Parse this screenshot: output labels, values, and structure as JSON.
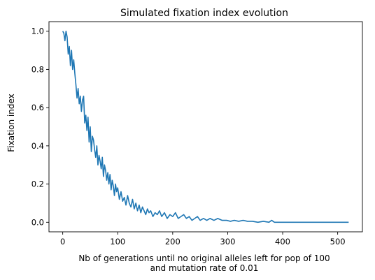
{
  "chart_data": {
    "type": "line",
    "title": "Simulated fixation index evolution",
    "xlabel_lines": [
      "Nb of generations until no original alleles left for pop of 100",
      "and mutation rate of 0.01"
    ],
    "ylabel": "Fixation index",
    "xlim": [
      -25,
      545
    ],
    "ylim": [
      -0.05,
      1.05
    ],
    "xticks": [
      0,
      100,
      200,
      300,
      400,
      500
    ],
    "yticks": [
      0.0,
      0.2,
      0.4,
      0.6,
      0.8,
      1.0
    ],
    "xtick_labels": [
      "0",
      "100",
      "200",
      "300",
      "400",
      "500"
    ],
    "ytick_labels": [
      "0.0",
      "0.2",
      "0.4",
      "0.6",
      "0.8",
      "1.0"
    ],
    "grid": false,
    "legend": "none",
    "series": [
      {
        "color": "#1f77b4",
        "x": [
          0,
          2,
          4,
          6,
          8,
          10,
          12,
          14,
          16,
          18,
          20,
          22,
          24,
          26,
          28,
          30,
          32,
          34,
          36,
          38,
          40,
          42,
          44,
          46,
          48,
          50,
          52,
          54,
          56,
          58,
          60,
          62,
          64,
          66,
          68,
          70,
          72,
          74,
          76,
          78,
          80,
          82,
          84,
          86,
          88,
          90,
          92,
          94,
          96,
          98,
          100,
          103,
          106,
          109,
          112,
          115,
          118,
          121,
          124,
          127,
          130,
          133,
          136,
          139,
          142,
          145,
          148,
          151,
          154,
          157,
          160,
          164,
          168,
          172,
          176,
          180,
          185,
          190,
          195,
          200,
          205,
          210,
          215,
          220,
          225,
          230,
          235,
          240,
          245,
          250,
          256,
          262,
          268,
          275,
          282,
          290,
          298,
          305,
          312,
          320,
          328,
          336,
          345,
          355,
          365,
          375,
          380,
          385,
          400,
          450,
          520
        ],
        "y": [
          1.0,
          0.99,
          0.95,
          1.0,
          0.97,
          0.88,
          0.92,
          0.82,
          0.9,
          0.8,
          0.85,
          0.78,
          0.72,
          0.65,
          0.7,
          0.62,
          0.66,
          0.58,
          0.64,
          0.66,
          0.52,
          0.56,
          0.48,
          0.55,
          0.42,
          0.5,
          0.37,
          0.45,
          0.43,
          0.38,
          0.34,
          0.4,
          0.3,
          0.35,
          0.32,
          0.28,
          0.34,
          0.24,
          0.3,
          0.27,
          0.22,
          0.26,
          0.2,
          0.25,
          0.17,
          0.22,
          0.19,
          0.14,
          0.2,
          0.16,
          0.18,
          0.12,
          0.16,
          0.11,
          0.13,
          0.09,
          0.14,
          0.1,
          0.08,
          0.12,
          0.07,
          0.1,
          0.06,
          0.09,
          0.05,
          0.08,
          0.06,
          0.04,
          0.07,
          0.05,
          0.06,
          0.03,
          0.05,
          0.04,
          0.06,
          0.03,
          0.05,
          0.02,
          0.04,
          0.03,
          0.05,
          0.02,
          0.03,
          0.04,
          0.02,
          0.03,
          0.01,
          0.02,
          0.03,
          0.01,
          0.02,
          0.01,
          0.02,
          0.01,
          0.02,
          0.01,
          0.01,
          0.005,
          0.01,
          0.005,
          0.01,
          0.005,
          0.005,
          0.0,
          0.005,
          0.0,
          0.01,
          0.0,
          0.0,
          0.0,
          0.0
        ]
      }
    ]
  }
}
